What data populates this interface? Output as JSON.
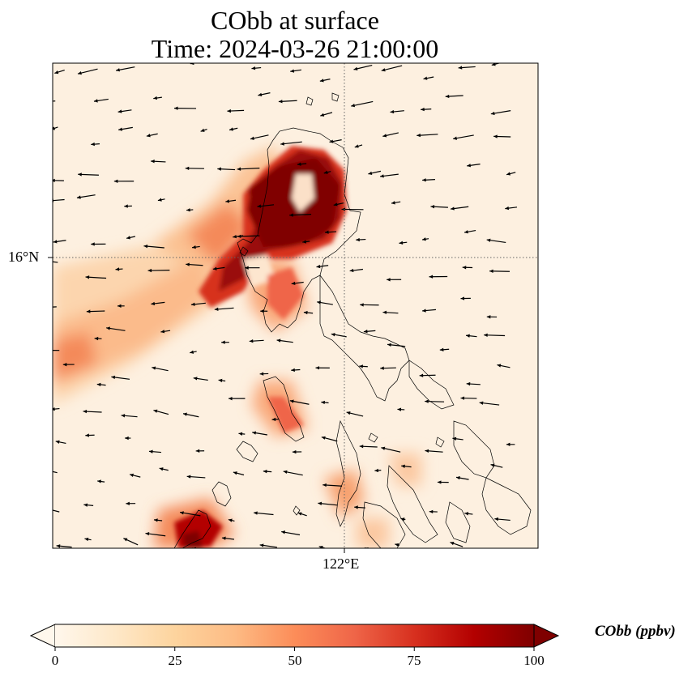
{
  "title": {
    "line1": "CObb at surface",
    "line2": "Time: 2024-03-26 21:00:00"
  },
  "map": {
    "lat_label": "16°N",
    "lon_label": "122°E",
    "gridline_style": "dotted",
    "layers": [
      "CObb concentration field",
      "coastlines",
      "wind vectors"
    ]
  },
  "colorbar": {
    "label": "CObb (ppbv)",
    "ticks": [
      "0",
      "25",
      "50",
      "75",
      "100"
    ],
    "min": 0,
    "max": 100,
    "colormap": "OrRd",
    "extend": "both",
    "colors": [
      "#fff7ec",
      "#fee8c8",
      "#fdd49e",
      "#fdbb84",
      "#fc8d59",
      "#ef6548",
      "#d7301f",
      "#b30000",
      "#7f0000"
    ]
  }
}
